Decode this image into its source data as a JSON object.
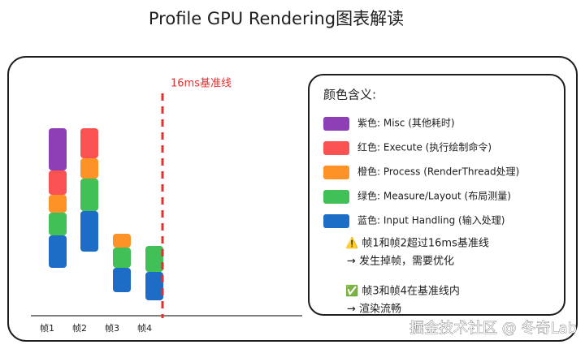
{
  "header": {
    "title": "Profile GPU Rendering图表解读"
  },
  "baseline_label": "16ms基准线",
  "frames": [
    "帧1",
    "帧2",
    "帧3",
    "帧4"
  ],
  "legend": {
    "title": "颜色含义:",
    "items": [
      {
        "label": "紫色: Misc (其他耗时)",
        "color": "#8e3fb5"
      },
      {
        "label": "红色: Execute (执行绘制命令)",
        "color": "#fa5252"
      },
      {
        "label": "橙色: Process (RenderThread处理)",
        "color": "#fd9226"
      },
      {
        "label": "绿色: Measure/Layout (布局测量)",
        "color": "#40c057"
      },
      {
        "label": "蓝色: Input Handling (输入处理)",
        "color": "#1d6cc6"
      }
    ]
  },
  "notes": [
    "⚠️ 帧1和帧2超过16ms基准线",
    "→ 发生掉帧，需要优化",
    "✅ 帧3和帧4在基准线内",
    "→ 渲染流畅"
  ],
  "watermark": "掘金技术社区 @ 冬奇Lab"
}
